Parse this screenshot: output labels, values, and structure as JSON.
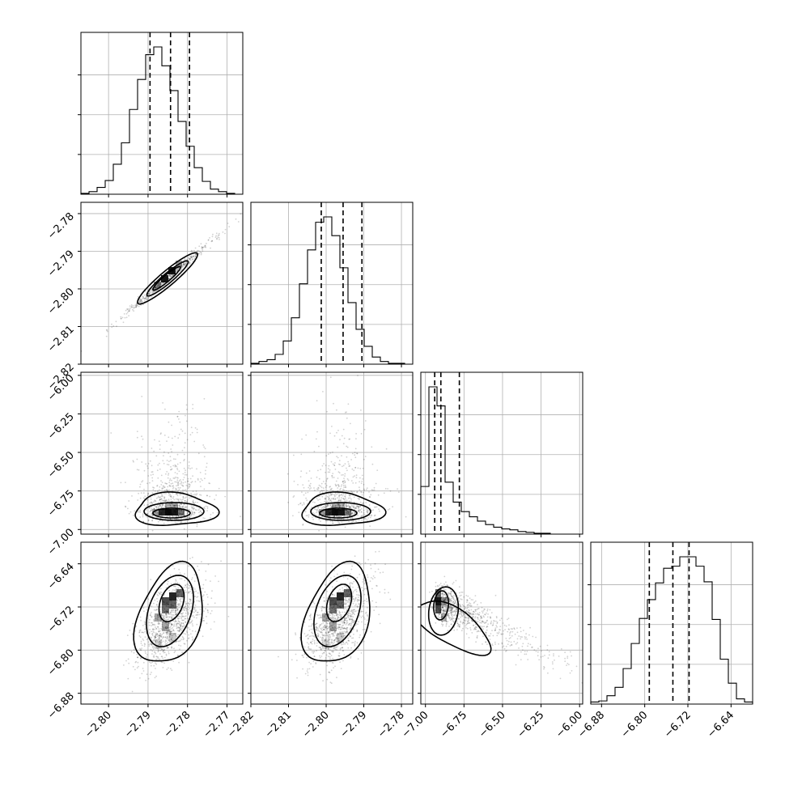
{
  "chart_data": {
    "type": "corner",
    "title": "",
    "grid": true,
    "n_params": 4,
    "quantile_levels": [
      0.16,
      0.5,
      0.84
    ],
    "parameters": [
      {
        "range": [
          -2.807,
          -2.766
        ],
        "ticks": [
          -2.8,
          -2.79,
          -2.78,
          -2.77
        ],
        "tick_labels": [
          "−2.80",
          "−2.79",
          "−2.78",
          "−2.77"
        ],
        "quantiles": [
          -2.7895,
          -2.7843,
          -2.7795
        ]
      },
      {
        "range": [
          -2.82,
          -2.777
        ],
        "ticks": [
          -2.82,
          -2.81,
          -2.8,
          -2.79,
          -2.78
        ],
        "tick_labels": [
          "−2.82",
          "−2.81",
          "−2.80",
          "−2.79",
          "−2.78"
        ],
        "quantiles": [
          -2.8013,
          -2.7955,
          -2.7905
        ]
      },
      {
        "range": [
          -7.03,
          -5.98
        ],
        "ticks": [
          -7.0,
          -6.75,
          -6.5,
          -6.25,
          -6.0
        ],
        "tick_labels": [
          "−7.00",
          "−6.75",
          "−6.50",
          "−6.25",
          "−6.00"
        ],
        "quantiles": [
          -6.94,
          -6.9,
          -6.78
        ]
      },
      {
        "range": [
          -6.9,
          -6.6
        ],
        "ticks": [
          -6.88,
          -6.8,
          -6.72,
          -6.64
        ],
        "tick_labels": [
          "−6.88",
          "−6.80",
          "−6.72",
          "−6.64"
        ],
        "quantiles": [
          -6.7915,
          -6.7478,
          -6.7178
        ]
      }
    ],
    "histograms": [
      {
        "edges_range": [
          -2.807,
          -2.766
        ],
        "counts": [
          1,
          3,
          8,
          16,
          35,
          60,
          99,
          134,
          163,
          172,
          150,
          121,
          85,
          56,
          31,
          15,
          6,
          3,
          1,
          0
        ]
      },
      {
        "edges_range": [
          -2.82,
          -2.777
        ],
        "counts": [
          1,
          3,
          5,
          11,
          26,
          52,
          90,
          128,
          159,
          165,
          144,
          108,
          69,
          39,
          20,
          8,
          3,
          1,
          1,
          0
        ]
      },
      {
        "edges_range": [
          -7.03,
          -5.98
        ],
        "counts": [
          55,
          170,
          148,
          60,
          37,
          26,
          20,
          15,
          11,
          8,
          6,
          5,
          3,
          2,
          1,
          1,
          0,
          0,
          0,
          0
        ]
      },
      {
        "edges_range": [
          -6.9,
          -6.6
        ],
        "counts": [
          2,
          3,
          8,
          16,
          34,
          58,
          82,
          100,
          116,
          130,
          132,
          141,
          141,
          132,
          117,
          81,
          43,
          20,
          5,
          2
        ]
      }
    ]
  }
}
